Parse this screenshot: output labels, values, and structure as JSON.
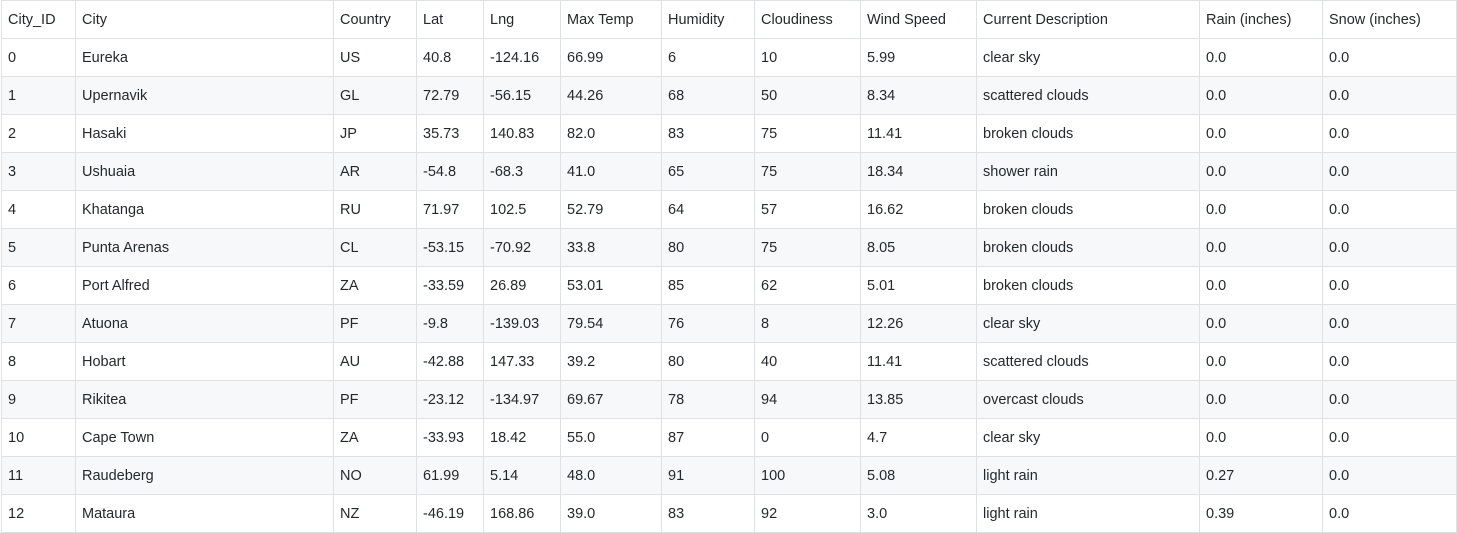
{
  "table": {
    "columns": [
      "City_ID",
      "City",
      "Country",
      "Lat",
      "Lng",
      "Max Temp",
      "Humidity",
      "Cloudiness",
      "Wind Speed",
      "Current Description",
      "Rain (inches)",
      "Snow (inches)"
    ],
    "rows": [
      [
        "0",
        "Eureka",
        "US",
        "40.8",
        "-124.16",
        "66.99",
        "6",
        "10",
        "5.99",
        "clear sky",
        "0.0",
        "0.0"
      ],
      [
        "1",
        "Upernavik",
        "GL",
        "72.79",
        "-56.15",
        "44.26",
        "68",
        "50",
        "8.34",
        "scattered clouds",
        "0.0",
        "0.0"
      ],
      [
        "2",
        "Hasaki",
        "JP",
        "35.73",
        "140.83",
        "82.0",
        "83",
        "75",
        "11.41",
        "broken clouds",
        "0.0",
        "0.0"
      ],
      [
        "3",
        "Ushuaia",
        "AR",
        "-54.8",
        "-68.3",
        "41.0",
        "65",
        "75",
        "18.34",
        "shower rain",
        "0.0",
        "0.0"
      ],
      [
        "4",
        "Khatanga",
        "RU",
        "71.97",
        "102.5",
        "52.79",
        "64",
        "57",
        "16.62",
        "broken clouds",
        "0.0",
        "0.0"
      ],
      [
        "5",
        "Punta Arenas",
        "CL",
        "-53.15",
        "-70.92",
        "33.8",
        "80",
        "75",
        "8.05",
        "broken clouds",
        "0.0",
        "0.0"
      ],
      [
        "6",
        "Port Alfred",
        "ZA",
        "-33.59",
        "26.89",
        "53.01",
        "85",
        "62",
        "5.01",
        "broken clouds",
        "0.0",
        "0.0"
      ],
      [
        "7",
        "Atuona",
        "PF",
        "-9.8",
        "-139.03",
        "79.54",
        "76",
        "8",
        "12.26",
        "clear sky",
        "0.0",
        "0.0"
      ],
      [
        "8",
        "Hobart",
        "AU",
        "-42.88",
        "147.33",
        "39.2",
        "80",
        "40",
        "11.41",
        "scattered clouds",
        "0.0",
        "0.0"
      ],
      [
        "9",
        "Rikitea",
        "PF",
        "-23.12",
        "-134.97",
        "69.67",
        "78",
        "94",
        "13.85",
        "overcast clouds",
        "0.0",
        "0.0"
      ],
      [
        "10",
        "Cape Town",
        "ZA",
        "-33.93",
        "18.42",
        "55.0",
        "87",
        "0",
        "4.7",
        "clear sky",
        "0.0",
        "0.0"
      ],
      [
        "11",
        "Raudeberg",
        "NO",
        "61.99",
        "5.14",
        "48.0",
        "91",
        "100",
        "5.08",
        "light rain",
        "0.27",
        "0.0"
      ],
      [
        "12",
        "Mataura",
        "NZ",
        "-46.19",
        "168.86",
        "39.0",
        "83",
        "92",
        "3.0",
        "light rain",
        "0.39",
        "0.0"
      ]
    ]
  }
}
